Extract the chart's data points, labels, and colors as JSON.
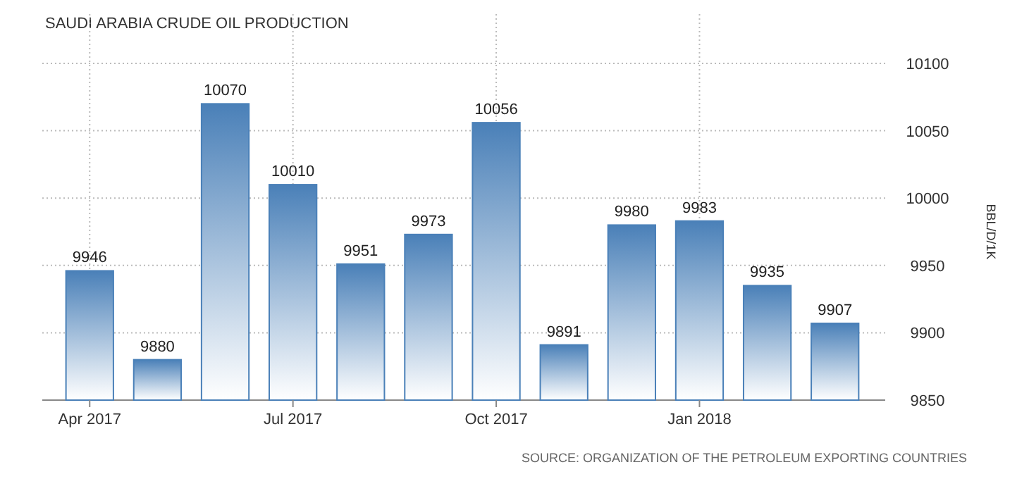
{
  "chart_data": {
    "type": "bar",
    "title": "SAUDI ARABIA CRUDE OIL PRODUCTION",
    "ylabel": "BBL/D/1K",
    "categories": [
      "Apr 2017",
      null,
      null,
      "Jul 2017",
      null,
      null,
      "Oct 2017",
      null,
      null,
      "Jan 2018",
      null,
      null
    ],
    "values": [
      9946,
      9880,
      10070,
      10010,
      9951,
      9973,
      10056,
      9891,
      9980,
      9983,
      9935,
      9907
    ],
    "color": "#4a80b8",
    "ylim": [
      9850,
      10100
    ],
    "yticks": [
      9850,
      9900,
      9950,
      10000,
      10050,
      10100
    ],
    "grid": true,
    "data_labels": true,
    "annotations": [
      "SOURCE: ORGANIZATION OF THE PETROLEUM EXPORTING COUNTRIES"
    ]
  }
}
